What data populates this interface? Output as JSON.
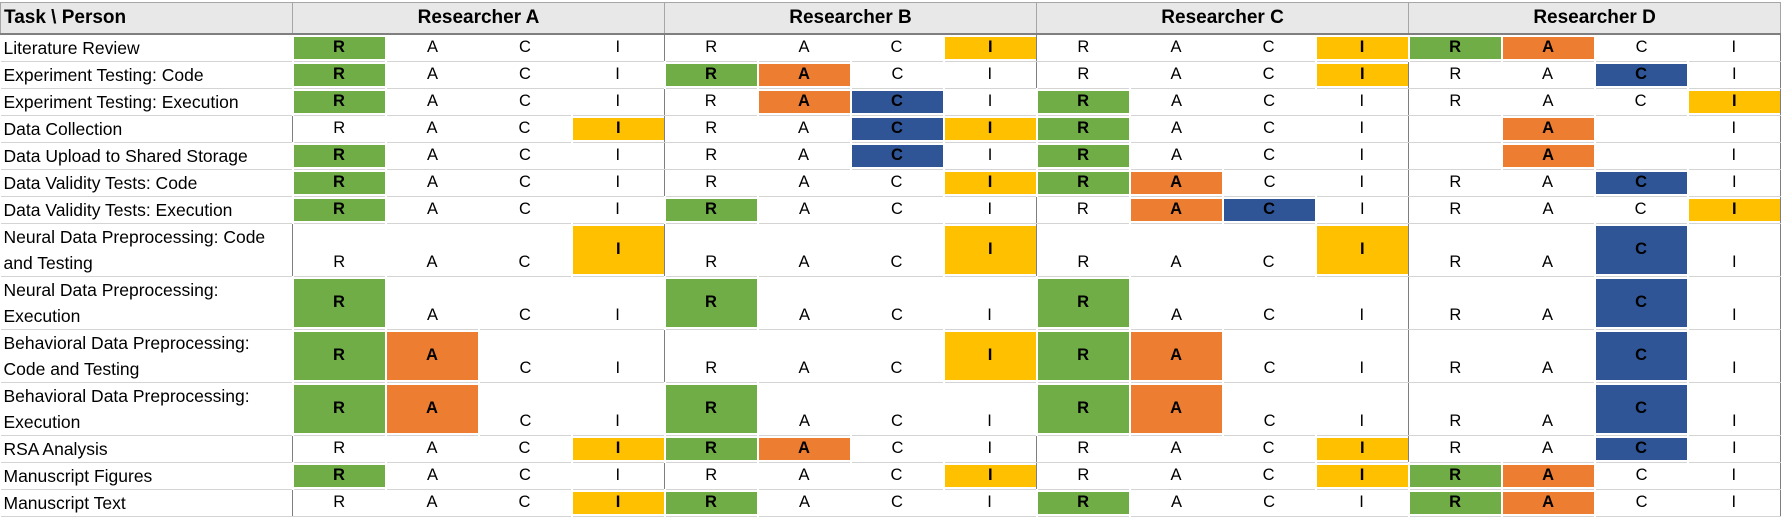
{
  "table": {
    "corner_label": "Task \\ Person",
    "researchers": [
      "Researcher A",
      "Researcher B",
      "Researcher C",
      "Researcher D"
    ],
    "roles": [
      "R",
      "A",
      "C",
      "I"
    ],
    "highlight_colors": {
      "R": "#70ad47",
      "A": "#ed7d31",
      "C": "#2f5597",
      "I": "#ffc000"
    },
    "rows": [
      {
        "task": "Literature Review",
        "cells": [
          [
            "R",
            "A",
            "C",
            "I"
          ],
          [
            "R",
            "A",
            "C",
            "I"
          ],
          [
            "R",
            "A",
            "C",
            "I"
          ],
          [
            "R",
            "A",
            "C",
            "I"
          ]
        ],
        "highlights": [
          [
            "R"
          ],
          [
            "I"
          ],
          [
            "I"
          ],
          [
            "R",
            "A"
          ]
        ]
      },
      {
        "task": "Experiment Testing: Code",
        "cells": [
          [
            "R",
            "A",
            "C",
            "I"
          ],
          [
            "R",
            "A",
            "C",
            "I"
          ],
          [
            "R",
            "A",
            "C",
            "I"
          ],
          [
            "R",
            "A",
            "C",
            "I"
          ]
        ],
        "highlights": [
          [
            "R"
          ],
          [
            "R",
            "A"
          ],
          [
            "I"
          ],
          [
            "C"
          ]
        ]
      },
      {
        "task": "Experiment Testing: Execution",
        "cells": [
          [
            "R",
            "A",
            "C",
            "I"
          ],
          [
            "R",
            "A",
            "C",
            "I"
          ],
          [
            "R",
            "A",
            "C",
            "I"
          ],
          [
            "R",
            "A",
            "C",
            "I"
          ]
        ],
        "highlights": [
          [
            "R"
          ],
          [
            "A",
            "C"
          ],
          [
            "R"
          ],
          [
            "I"
          ]
        ]
      },
      {
        "task": "Data Collection",
        "cells": [
          [
            "R",
            "A",
            "C",
            "I"
          ],
          [
            "R",
            "A",
            "C",
            "I"
          ],
          [
            "R",
            "A",
            "C",
            "I"
          ],
          [
            "",
            "A",
            "",
            "I"
          ]
        ],
        "highlights": [
          [
            "I"
          ],
          [
            "C",
            "I"
          ],
          [
            "R"
          ],
          [
            "A"
          ]
        ]
      },
      {
        "task": "Data Upload to Shared Storage",
        "cells": [
          [
            "R",
            "A",
            "C",
            "I"
          ],
          [
            "R",
            "A",
            "C",
            "I"
          ],
          [
            "R",
            "A",
            "C",
            "I"
          ],
          [
            "",
            "A",
            "",
            "I"
          ]
        ],
        "highlights": [
          [
            "R"
          ],
          [
            "C"
          ],
          [
            "R"
          ],
          [
            "A"
          ]
        ]
      },
      {
        "task": "Data Validity Tests: Code",
        "cells": [
          [
            "R",
            "A",
            "C",
            "I"
          ],
          [
            "R",
            "A",
            "C",
            "I"
          ],
          [
            "R",
            "A",
            "C",
            "I"
          ],
          [
            "R",
            "A",
            "C",
            "I"
          ]
        ],
        "highlights": [
          [
            "R"
          ],
          [
            "I"
          ],
          [
            "R",
            "A"
          ],
          [
            "C"
          ]
        ]
      },
      {
        "task": "Data Validity Tests: Execution",
        "cells": [
          [
            "R",
            "A",
            "C",
            "I"
          ],
          [
            "R",
            "A",
            "C",
            "I"
          ],
          [
            "R",
            "A",
            "C",
            "I"
          ],
          [
            "R",
            "A",
            "C",
            "I"
          ]
        ],
        "highlights": [
          [
            "R"
          ],
          [
            "R"
          ],
          [
            "A",
            "C"
          ],
          [
            "I"
          ]
        ]
      },
      {
        "task": "Neural Data Preprocessing: Code and Testing",
        "cells": [
          [
            "R",
            "A",
            "C",
            "I"
          ],
          [
            "R",
            "A",
            "C",
            "I"
          ],
          [
            "R",
            "A",
            "C",
            "I"
          ],
          [
            "R",
            "A",
            "C",
            "I"
          ]
        ],
        "highlights": [
          [
            "I"
          ],
          [
            "I"
          ],
          [
            "I"
          ],
          [
            "C"
          ]
        ]
      },
      {
        "task": "Neural Data Preprocessing: Execution",
        "cells": [
          [
            "R",
            "A",
            "C",
            "I"
          ],
          [
            "R",
            "A",
            "C",
            "I"
          ],
          [
            "R",
            "A",
            "C",
            "I"
          ],
          [
            "R",
            "A",
            "C",
            "I"
          ]
        ],
        "highlights": [
          [
            "R"
          ],
          [
            "R"
          ],
          [
            "R"
          ],
          [
            "C"
          ]
        ]
      },
      {
        "task": "Behavioral Data Preprocessing: Code and Testing",
        "cells": [
          [
            "R",
            "A",
            "C",
            "I"
          ],
          [
            "R",
            "A",
            "C",
            "I"
          ],
          [
            "R",
            "A",
            "C",
            "I"
          ],
          [
            "R",
            "A",
            "C",
            "I"
          ]
        ],
        "highlights": [
          [
            "R",
            "A"
          ],
          [
            "I"
          ],
          [
            "R",
            "A"
          ],
          [
            "C"
          ]
        ]
      },
      {
        "task": "Behavioral Data Preprocessing: Execution",
        "cells": [
          [
            "R",
            "A",
            "C",
            "I"
          ],
          [
            "R",
            "A",
            "C",
            "I"
          ],
          [
            "R",
            "A",
            "C",
            "I"
          ],
          [
            "R",
            "A",
            "C",
            "I"
          ]
        ],
        "highlights": [
          [
            "R",
            "A"
          ],
          [
            "R"
          ],
          [
            "R",
            "A"
          ],
          [
            "C"
          ]
        ]
      },
      {
        "task": "RSA Analysis",
        "cells": [
          [
            "R",
            "A",
            "C",
            "I"
          ],
          [
            "R",
            "A",
            "C",
            "I"
          ],
          [
            "R",
            "A",
            "C",
            "I"
          ],
          [
            "R",
            "A",
            "C",
            "I"
          ]
        ],
        "highlights": [
          [
            "I"
          ],
          [
            "R",
            "A"
          ],
          [
            "I"
          ],
          [
            "C"
          ]
        ]
      },
      {
        "task": "Manuscript Figures",
        "cells": [
          [
            "R",
            "A",
            "C",
            "I"
          ],
          [
            "R",
            "A",
            "C",
            "I"
          ],
          [
            "R",
            "A",
            "C",
            "I"
          ],
          [
            "R",
            "A",
            "C",
            "I"
          ]
        ],
        "highlights": [
          [
            "R"
          ],
          [
            "I"
          ],
          [
            "I"
          ],
          [
            "R",
            "A"
          ]
        ]
      },
      {
        "task": "Manuscript Text",
        "cells": [
          [
            "R",
            "A",
            "C",
            "I"
          ],
          [
            "R",
            "A",
            "C",
            "I"
          ],
          [
            "R",
            "A",
            "C",
            "I"
          ],
          [
            "R",
            "A",
            "C",
            "I"
          ]
        ],
        "highlights": [
          [
            "I"
          ],
          [
            "R"
          ],
          [
            "R"
          ],
          [
            "R",
            "A"
          ]
        ]
      }
    ]
  }
}
